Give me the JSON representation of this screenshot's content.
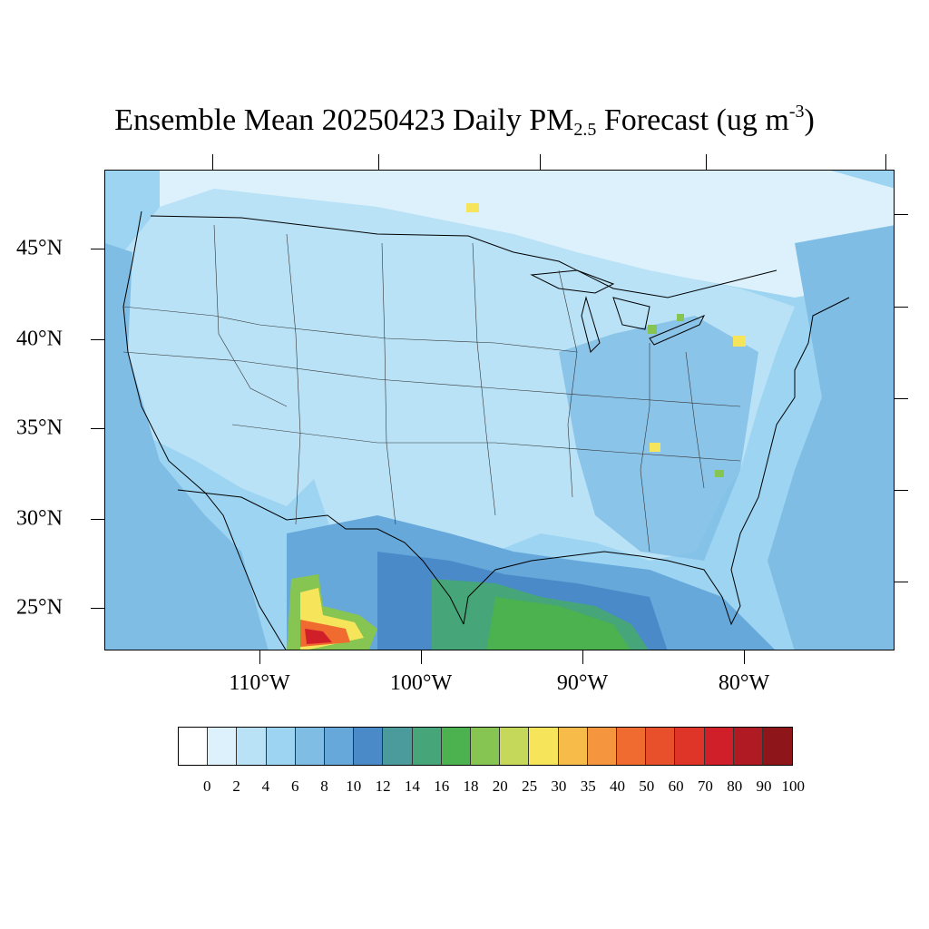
{
  "title": {
    "prefix": "Ensemble Mean 20250423 Daily PM",
    "subscript": "2.5",
    "middle": " Forecast (ug m",
    "superscript": "-3",
    "suffix": ")"
  },
  "map": {
    "lat_labels": [
      "45°N",
      "40°N",
      "35°N",
      "30°N",
      "25°N"
    ],
    "lon_labels": [
      "110°W",
      "100°W",
      "90°W",
      "80°W"
    ]
  },
  "colorbar": {
    "levels": [
      "0",
      "2",
      "4",
      "6",
      "8",
      "10",
      "12",
      "14",
      "16",
      "18",
      "20",
      "25",
      "30",
      "35",
      "40",
      "50",
      "60",
      "70",
      "80",
      "90",
      "100"
    ],
    "colors": [
      "#ffffff",
      "#dcf1fb",
      "#b9e2f7",
      "#9cd4f2",
      "#7fbde5",
      "#66a8da",
      "#4a8ac9",
      "#4b9a9c",
      "#47a57a",
      "#4bb24f",
      "#86c552",
      "#c6d85a",
      "#f6e55b",
      "#f7bb49",
      "#f5963f",
      "#f06b2f",
      "#e8502c",
      "#df3428",
      "#d01f28",
      "#b01b23",
      "#8e1519"
    ]
  },
  "colors": {
    "map_base": "#b8e2f7",
    "coastline": "#000000",
    "state_lines": "#333333"
  }
}
